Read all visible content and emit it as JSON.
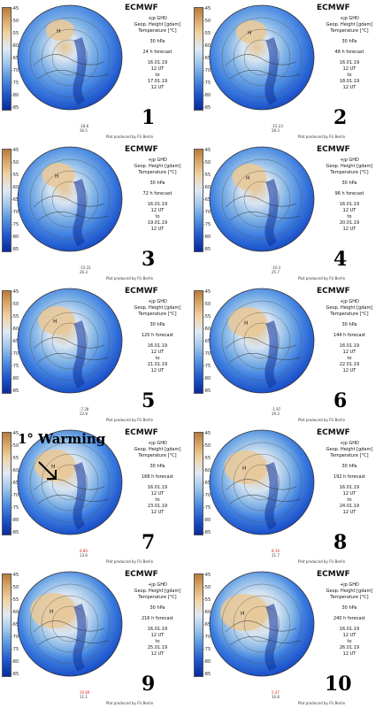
{
  "common": {
    "brand": "ECMWF",
    "sub": "+jp GHD",
    "field1": "Geop. Height [gdam]",
    "field2": "Temperature [°C]",
    "level": "30 hPa",
    "init": "16.01.19",
    "hour": "12 UT",
    "valid_word": "to",
    "credit": "Plot produced by FU Berlin",
    "colorbar_ticks": [
      "-45",
      "-50",
      "-55",
      "-60",
      "-65",
      "-70",
      "-75",
      "-80",
      "-85"
    ]
  },
  "annotation": "1° Warming",
  "panels": [
    {
      "num": "1",
      "forecast": "24 h forecast",
      "valid": "17.01.19",
      "tmin": "-18.6",
      "wind": "30.5"
    },
    {
      "num": "2",
      "forecast": "48 h forecast",
      "valid": "18.01.19",
      "tmin": "-15.23",
      "wind": "28.3"
    },
    {
      "num": "3",
      "forecast": "72 h forecast",
      "valid": "19.01.19",
      "tmin": "-15.31",
      "wind": "26.3"
    },
    {
      "num": "4",
      "forecast": "96 h forecast",
      "valid": "20.01.19",
      "tmin": "-10.3",
      "wind": "25.7"
    },
    {
      "num": "5",
      "forecast": "120 h forecast",
      "valid": "21.01.19",
      "tmin": "-7.28",
      "wind": "22.8"
    },
    {
      "num": "6",
      "forecast": "144 h forecast",
      "valid": "22.01.19",
      "tmin": "-1.97",
      "wind": "19.3"
    },
    {
      "num": "7",
      "forecast": "168 h forecast",
      "valid": "23.01.19",
      "tmin": "6.89",
      "wind": "13.6"
    },
    {
      "num": "8",
      "forecast": "192 h forecast",
      "valid": "24.01.19",
      "tmin": "8.19",
      "wind": "11.7"
    },
    {
      "num": "9",
      "forecast": "216 h forecast",
      "valid": "25.01.19",
      "tmin": "10.69",
      "wind": "11.1"
    },
    {
      "num": "10",
      "forecast": "240 h forecast",
      "valid": "26.01.19",
      "tmin": "5.47",
      "wind": "10.8"
    }
  ]
}
